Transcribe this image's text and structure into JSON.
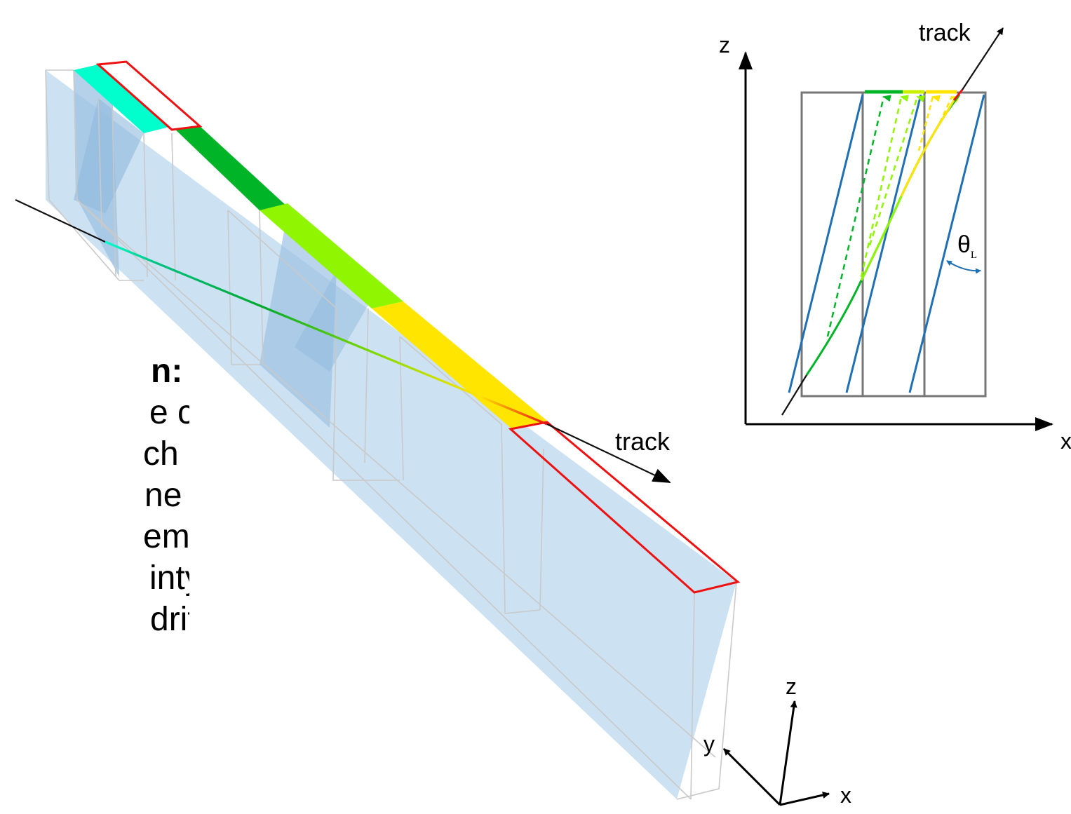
{
  "description_text": {
    "heading_fragment": "n:",
    "lines": [
      "e closest",
      "ch radius",
      "ne",
      "ement",
      "inty",
      "drift time"
    ]
  },
  "main_diagram": {
    "track_label": "track",
    "cells": [
      {
        "color": "#00ffcc"
      },
      {
        "color": "#00b428"
      },
      {
        "color": "#90f500"
      },
      {
        "color": "#ffe500"
      }
    ],
    "highlight_color": "#ee1111",
    "detector_fill": "#b8d5ec"
  },
  "inset_diagram": {
    "z_axis_label": "z",
    "x_axis_label": "x",
    "track_label": "track",
    "angle_label": "θ",
    "angle_subscript": "L",
    "line_color": "#1f6fb5",
    "arrow_colors": [
      "#00b428",
      "#90f500",
      "#ffe500"
    ]
  },
  "axes_triad": {
    "z_label": "z",
    "y_label": "y",
    "x_label": "x"
  }
}
